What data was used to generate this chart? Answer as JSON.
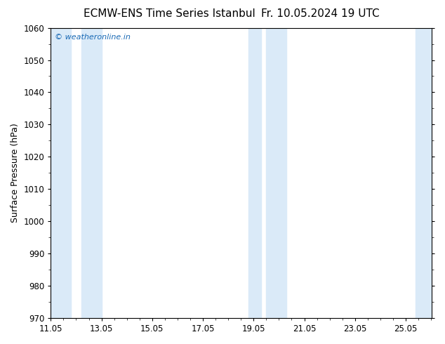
{
  "title_left": "ECMW-ENS Time Series Istanbul",
  "title_right": "Fr. 10.05.2024 19 UTC",
  "ylabel": "Surface Pressure (hPa)",
  "ylim": [
    970,
    1060
  ],
  "yticks": [
    970,
    980,
    990,
    1000,
    1010,
    1020,
    1030,
    1040,
    1050,
    1060
  ],
  "xlim_start": 11.05,
  "xlim_end": 26.07,
  "xticks": [
    11.05,
    13.05,
    15.05,
    17.05,
    19.05,
    21.05,
    23.05,
    25.05
  ],
  "xtick_labels": [
    "11.05",
    "13.05",
    "15.05",
    "17.05",
    "19.05",
    "21.05",
    "23.05",
    "25.05"
  ],
  "watermark": "© weatheronline.in",
  "watermark_color": "#1a6ab5",
  "background_color": "#ffffff",
  "plot_bg_color": "#ffffff",
  "shaded_bands": [
    {
      "x_start": 11.05,
      "x_end": 11.85,
      "color": "#daeaf8"
    },
    {
      "x_start": 12.25,
      "x_end": 13.05,
      "color": "#daeaf8"
    },
    {
      "x_start": 18.85,
      "x_end": 19.35,
      "color": "#daeaf8"
    },
    {
      "x_start": 19.55,
      "x_end": 20.35,
      "color": "#daeaf8"
    },
    {
      "x_start": 25.45,
      "x_end": 26.07,
      "color": "#daeaf8"
    }
  ],
  "title_fontsize": 11,
  "tick_fontsize": 8.5,
  "label_fontsize": 9,
  "watermark_fontsize": 8,
  "fig_width": 6.34,
  "fig_height": 4.9,
  "dpi": 100
}
